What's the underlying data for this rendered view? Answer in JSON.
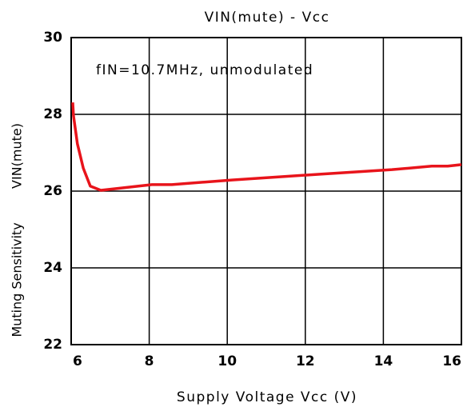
{
  "chart_data": {
    "type": "line",
    "title": "VIN(mute) - Vcc",
    "annotation": "fIN=10.7MHz, unmodulated",
    "xlabel": "Supply Voltage Vcc (V)",
    "ylabel": "Muting Sensitivity",
    "ylabel2": "VIN(mute)",
    "series": [
      {
        "name": "VIN(mute)",
        "color": "#e8141b",
        "x": [
          6.04,
          6.06,
          6.16,
          6.31,
          6.49,
          6.76,
          7.45,
          8.07,
          8.58,
          10.12,
          12.37,
          14.22,
          15.24,
          15.65,
          16.0
        ],
        "values": [
          28.31,
          27.96,
          27.23,
          26.6,
          26.13,
          26.02,
          26.1,
          26.17,
          26.17,
          26.29,
          26.44,
          26.56,
          26.65,
          26.65,
          26.69
        ]
      }
    ],
    "xlim": [
      6,
      16
    ],
    "xticks": [
      6,
      8,
      10,
      12,
      14,
      16
    ],
    "ylim": [
      22,
      30
    ],
    "yticks": [
      22,
      24,
      26,
      28,
      30
    ],
    "grid": true
  }
}
